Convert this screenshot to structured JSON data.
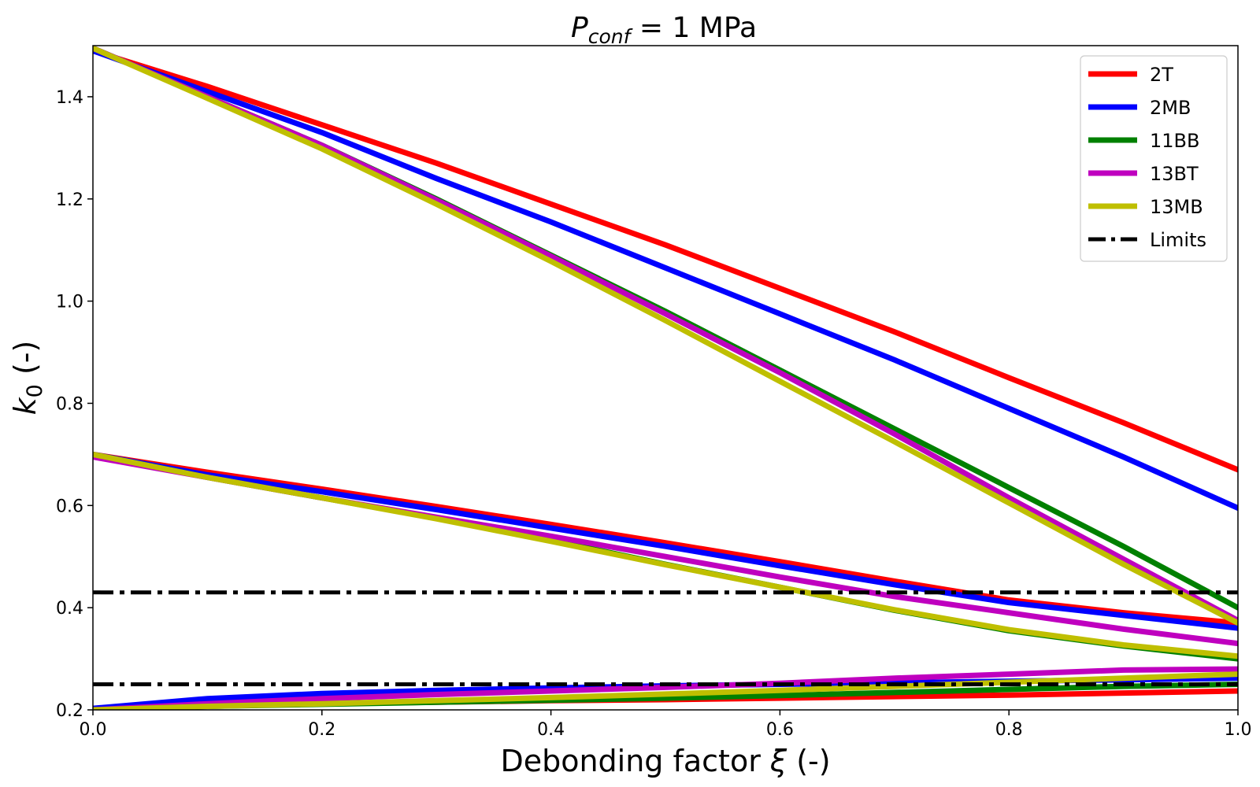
{
  "chart_data": {
    "type": "line",
    "title": {
      "symbol": "P",
      "subscript": "conf",
      "rest": " = 1 MPa"
    },
    "xlabel": {
      "text": "Debonding factor ",
      "symbol": "ξ",
      "unit": " (-)"
    },
    "ylabel": {
      "symbol": "k",
      "subscript": "0",
      "unit": " (-)"
    },
    "xlim": [
      0.0,
      1.0
    ],
    "ylim": [
      0.2,
      1.5
    ],
    "xticks": [
      "0.0",
      "0.2",
      "0.4",
      "0.6",
      "0.8",
      "1.0"
    ],
    "yticks": [
      "0.2",
      "0.4",
      "0.6",
      "0.8",
      "1.0",
      "1.2",
      "1.4"
    ],
    "legend_position": "top-right",
    "series": [
      {
        "name": "2T",
        "color": "#ff0000",
        "curves": [
          {
            "x": [
              0,
              0.1,
              0.2,
              0.3,
              0.4,
              0.5,
              0.6,
              0.7,
              0.8,
              0.9,
              1.0
            ],
            "y": [
              1.49,
              1.42,
              1.345,
              1.27,
              1.19,
              1.11,
              1.025,
              0.94,
              0.85,
              0.762,
              0.67
            ]
          },
          {
            "x": [
              0,
              0.1,
              0.2,
              0.3,
              0.4,
              0.5,
              0.6,
              0.7,
              0.8,
              0.9,
              1.0
            ],
            "y": [
              0.7,
              0.665,
              0.632,
              0.598,
              0.563,
              0.527,
              0.49,
              0.452,
              0.415,
              0.39,
              0.37
            ]
          },
          {
            "x": [
              0,
              0.1,
              0.2,
              0.3,
              0.4,
              0.5,
              0.6,
              0.7,
              0.8,
              0.9,
              1.0
            ],
            "y": [
              0.2,
              0.208,
              0.212,
              0.215,
              0.218,
              0.22,
              0.223,
              0.226,
              0.229,
              0.233,
              0.237
            ]
          }
        ]
      },
      {
        "name": "2MB",
        "color": "#0000ff",
        "curves": [
          {
            "x": [
              0,
              0.1,
              0.2,
              0.3,
              0.4,
              0.5,
              0.6,
              0.7,
              0.8,
              0.9,
              1.0
            ],
            "y": [
              1.49,
              1.41,
              1.33,
              1.24,
              1.155,
              1.065,
              0.975,
              0.885,
              0.79,
              0.695,
              0.595
            ]
          },
          {
            "x": [
              0,
              0.1,
              0.2,
              0.3,
              0.4,
              0.5,
              0.6,
              0.7,
              0.8,
              0.9,
              1.0
            ],
            "y": [
              0.7,
              0.66,
              0.627,
              0.592,
              0.556,
              0.52,
              0.482,
              0.445,
              0.41,
              0.385,
              0.36
            ]
          },
          {
            "x": [
              0,
              0.1,
              0.2,
              0.3,
              0.4,
              0.5,
              0.6,
              0.7,
              0.8,
              0.9,
              1.0
            ],
            "y": [
              0.203,
              0.222,
              0.232,
              0.238,
              0.243,
              0.247,
              0.25,
              0.253,
              0.256,
              0.259,
              0.262
            ]
          }
        ]
      },
      {
        "name": "11BB",
        "color": "#008000",
        "curves": [
          {
            "x": [
              0,
              0.1,
              0.2,
              0.3,
              0.4,
              0.5,
              0.6,
              0.7,
              0.8,
              0.9,
              1.0
            ],
            "y": [
              1.495,
              1.4,
              1.305,
              1.2,
              1.09,
              0.98,
              0.865,
              0.75,
              0.635,
              0.52,
              0.4
            ]
          },
          {
            "x": [
              0,
              0.1,
              0.2,
              0.3,
              0.4,
              0.5,
              0.6,
              0.7,
              0.8,
              0.9,
              1.0
            ],
            "y": [
              0.7,
              0.655,
              0.615,
              0.575,
              0.532,
              0.485,
              0.44,
              0.395,
              0.355,
              0.325,
              0.3
            ]
          },
          {
            "x": [
              0,
              0.1,
              0.2,
              0.3,
              0.4,
              0.5,
              0.6,
              0.7,
              0.8,
              0.9,
              1.0
            ],
            "y": [
              0.2,
              0.207,
              0.211,
              0.215,
              0.219,
              0.223,
              0.228,
              0.234,
              0.24,
              0.246,
              0.25
            ]
          }
        ]
      },
      {
        "name": "13BT",
        "color": "#bf00bf",
        "curves": [
          {
            "x": [
              0,
              0.1,
              0.2,
              0.3,
              0.4,
              0.5,
              0.6,
              0.7,
              0.8,
              0.9,
              1.0
            ],
            "y": [
              1.495,
              1.4,
              1.305,
              1.198,
              1.088,
              0.975,
              0.86,
              0.74,
              0.615,
              0.495,
              0.375
            ]
          },
          {
            "x": [
              0,
              0.1,
              0.2,
              0.3,
              0.4,
              0.5,
              0.6,
              0.7,
              0.8,
              0.9,
              1.0
            ],
            "y": [
              0.695,
              0.655,
              0.615,
              0.577,
              0.54,
              0.5,
              0.46,
              0.422,
              0.39,
              0.358,
              0.33
            ]
          },
          {
            "x": [
              0,
              0.1,
              0.2,
              0.3,
              0.4,
              0.5,
              0.6,
              0.7,
              0.8,
              0.9,
              1.0
            ],
            "y": [
              0.2,
              0.212,
              0.222,
              0.23,
              0.237,
              0.244,
              0.252,
              0.262,
              0.27,
              0.278,
              0.28
            ]
          }
        ]
      },
      {
        "name": "13MB",
        "color": "#bfbf00",
        "curves": [
          {
            "x": [
              0,
              0.1,
              0.2,
              0.3,
              0.4,
              0.5,
              0.6,
              0.7,
              0.8,
              0.9,
              1.0
            ],
            "y": [
              1.495,
              1.397,
              1.298,
              1.19,
              1.078,
              0.962,
              0.843,
              0.725,
              0.605,
              0.485,
              0.37
            ]
          },
          {
            "x": [
              0,
              0.1,
              0.2,
              0.3,
              0.4,
              0.5,
              0.6,
              0.7,
              0.8,
              0.9,
              1.0
            ],
            "y": [
              0.7,
              0.655,
              0.615,
              0.574,
              0.53,
              0.484,
              0.44,
              0.396,
              0.357,
              0.327,
              0.305
            ]
          },
          {
            "x": [
              0,
              0.1,
              0.2,
              0.3,
              0.4,
              0.5,
              0.6,
              0.7,
              0.8,
              0.9,
              1.0
            ],
            "y": [
              0.2,
              0.207,
              0.212,
              0.218,
              0.224,
              0.231,
              0.238,
              0.246,
              0.254,
              0.262,
              0.27
            ]
          }
        ]
      },
      {
        "name": "Limits",
        "color": "#000000",
        "dashed": true,
        "curves": [
          {
            "x": [
              0,
              1.0
            ],
            "y": [
              0.43,
              0.43
            ]
          },
          {
            "x": [
              0,
              1.0
            ],
            "y": [
              0.25,
              0.25
            ]
          }
        ]
      }
    ]
  }
}
